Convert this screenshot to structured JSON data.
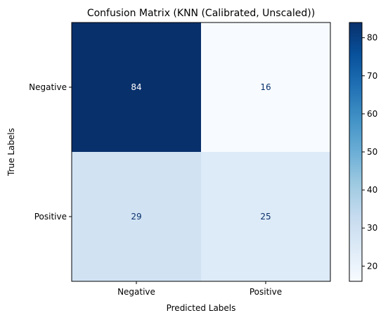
{
  "chart_data": {
    "type": "heatmap",
    "title": "Confusion Matrix (KNN (Calibrated, Unscaled))",
    "xlabel": "Predicted Labels",
    "ylabel": "True Labels",
    "x_categories": [
      "Negative",
      "Positive"
    ],
    "y_categories": [
      "Negative",
      "Positive"
    ],
    "values": [
      [
        84,
        16
      ],
      [
        29,
        25
      ]
    ],
    "colormap": "Blues",
    "colorbar": {
      "vmin": 16,
      "vmax": 84,
      "ticks": [
        "20",
        "30",
        "40",
        "50",
        "60",
        "70",
        "80"
      ]
    },
    "grid": false
  }
}
